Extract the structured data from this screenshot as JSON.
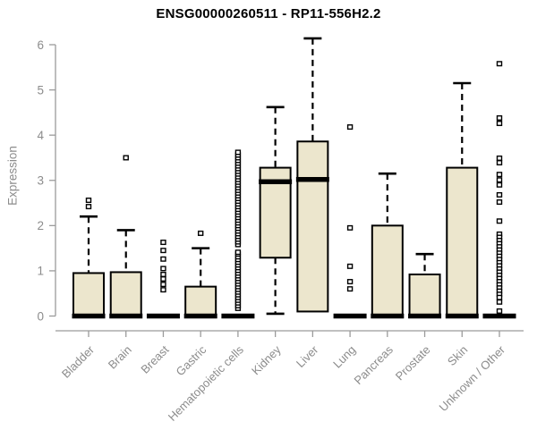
{
  "chart_data": {
    "type": "boxplot",
    "title": "ENSG00000260511 - RP11-556H2.2",
    "ylabel": "Expression",
    "xlabel": "",
    "ylim": [
      0,
      6
    ],
    "yticks": [
      0,
      1,
      2,
      3,
      4,
      5,
      6
    ],
    "grid": false,
    "legend": false,
    "categories": [
      "Bladder",
      "Brain",
      "Breast",
      "Gastric",
      "Hematopoietic cells",
      "Kidney",
      "Liver",
      "Lung",
      "Pancreas",
      "Prostate",
      "Skin",
      "Unknown / Other"
    ],
    "series": [
      {
        "name": "Bladder",
        "q1": 0,
        "median": 0,
        "q3": 0.95,
        "whisker_low": 0,
        "whisker_high": 2.2,
        "outliers": [
          2.42,
          2.56
        ]
      },
      {
        "name": "Brain",
        "q1": 0,
        "median": 0,
        "q3": 0.97,
        "whisker_low": 0,
        "whisker_high": 1.9,
        "outliers": [
          3.5
        ]
      },
      {
        "name": "Breast",
        "q1": 0,
        "median": 0,
        "q3": 0,
        "whisker_low": 0,
        "whisker_high": 0,
        "outliers": [
          0.58,
          0.7,
          0.82,
          0.92,
          1.05,
          1.26,
          1.45,
          1.63
        ]
      },
      {
        "name": "Gastric",
        "q1": 0,
        "median": 0,
        "q3": 0.65,
        "whisker_low": 0,
        "whisker_high": 1.5,
        "outliers": [
          1.83
        ]
      },
      {
        "name": "Hematopoietic cells",
        "q1": 0,
        "median": 0,
        "q3": 0,
        "whisker_low": 0,
        "whisker_high": 0,
        "outliers": [
          0.17,
          0.23,
          0.29,
          0.35,
          0.41,
          0.47,
          0.53,
          0.59,
          0.65,
          0.71,
          0.77,
          0.83,
          0.89,
          0.95,
          1.01,
          1.07,
          1.13,
          1.19,
          1.25,
          1.31,
          1.37,
          1.41,
          1.58,
          1.64,
          1.7,
          1.76,
          1.82,
          1.88,
          1.94,
          2.0,
          2.06,
          2.12,
          2.18,
          2.24,
          2.3,
          2.36,
          2.42,
          2.48,
          2.54,
          2.6,
          2.66,
          2.72,
          2.78,
          2.84,
          2.9,
          2.96,
          3.02,
          3.08,
          3.14,
          3.2,
          3.26,
          3.32,
          3.38,
          3.44,
          3.5,
          3.56,
          3.62
        ]
      },
      {
        "name": "Kidney",
        "q1": 1.29,
        "median": 2.97,
        "q3": 3.28,
        "whisker_low": 0.05,
        "whisker_high": 4.62,
        "outliers": []
      },
      {
        "name": "Liver",
        "q1": 0.1,
        "median": 3.02,
        "q3": 3.86,
        "whisker_low": 0.1,
        "whisker_high": 6.14,
        "outliers": []
      },
      {
        "name": "Lung",
        "q1": 0,
        "median": 0,
        "q3": 0,
        "whisker_low": 0,
        "whisker_high": 0,
        "outliers": [
          0.6,
          0.76,
          1.1,
          1.95,
          4.18
        ]
      },
      {
        "name": "Pancreas",
        "q1": 0,
        "median": 0,
        "q3": 2.0,
        "whisker_low": 0,
        "whisker_high": 3.15,
        "outliers": []
      },
      {
        "name": "Prostate",
        "q1": 0,
        "median": 0,
        "q3": 0.92,
        "whisker_low": 0,
        "whisker_high": 1.37,
        "outliers": []
      },
      {
        "name": "Skin",
        "q1": 0,
        "median": 0,
        "q3": 3.28,
        "whisker_low": 0,
        "whisker_high": 5.15,
        "outliers": []
      },
      {
        "name": "Unknown / Other",
        "q1": 0,
        "median": 0,
        "q3": 0,
        "whisker_low": 0,
        "whisker_high": 0,
        "outliers": [
          5.58,
          4.38,
          4.26,
          3.49,
          3.39,
          3.13,
          3.01,
          2.9,
          2.68,
          2.52,
          2.1,
          1.81,
          1.74,
          1.67,
          1.6,
          1.53,
          1.46,
          1.39,
          1.32,
          1.25,
          1.18,
          1.11,
          1.04,
          0.97,
          0.9,
          0.83,
          0.76,
          0.69,
          0.62,
          0.55,
          0.48,
          0.41,
          0.31,
          0.11
        ]
      }
    ],
    "colors": {
      "box_fill": "#ece6cd",
      "box_border": "#000000",
      "median": "#000000",
      "whisker": "#000000",
      "outlier_fill": "#ffffff",
      "axis_line": "#9b9b9b",
      "axis_text": "#8c8c8c",
      "title": "#000000"
    }
  }
}
